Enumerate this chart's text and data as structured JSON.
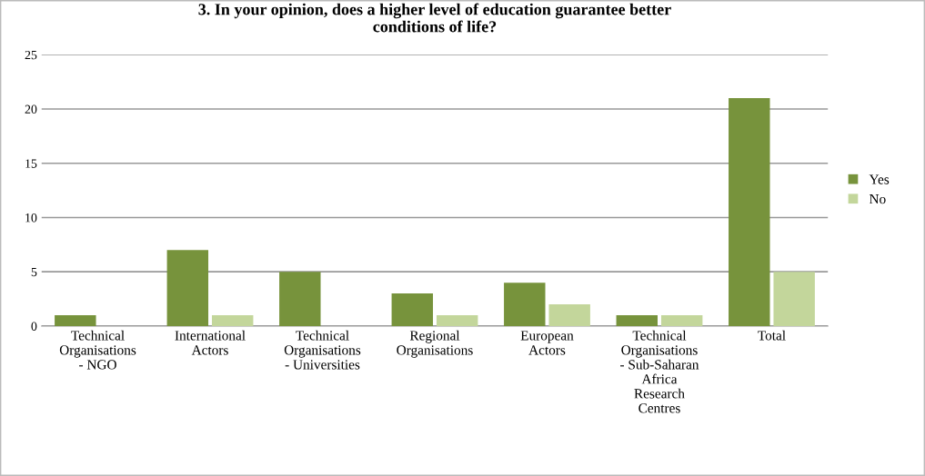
{
  "chart_data": {
    "type": "bar",
    "title": "3. In your opinion, does a higher level of education guarantee better\nconditions of life?",
    "categories": [
      "Technical\nOrganisations\n- NGO",
      "International\nActors",
      "Technical\nOrganisations\n- Universities",
      "Regional\nOrganisations",
      "European\nActors",
      "Technical\nOrganisations\n- Sub-Saharan\nAfrica\nResearch\nCentres",
      "Total"
    ],
    "series": [
      {
        "name": "Yes",
        "color": "#77933c",
        "values": [
          1,
          7,
          5,
          3,
          4,
          1,
          21
        ]
      },
      {
        "name": "No",
        "color": "#c3d69b",
        "values": [
          0,
          1,
          0,
          1,
          2,
          1,
          5
        ]
      }
    ],
    "ylim": [
      0,
      25
    ],
    "yticks": [
      0,
      5,
      10,
      15,
      20,
      25
    ],
    "grid": "y",
    "legend": "right"
  }
}
